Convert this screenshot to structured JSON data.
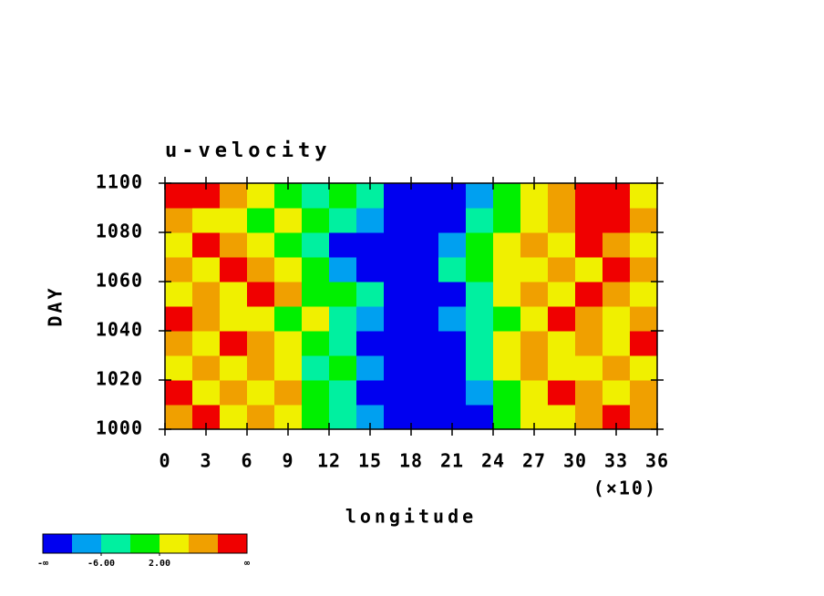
{
  "chart_data": {
    "type": "heatmap",
    "title": "u-velocity",
    "x_label": "longitude",
    "y_label": "DAY",
    "x_multiplier_label": "(×10)",
    "x": [
      1,
      3,
      5,
      7,
      9,
      11,
      13,
      15,
      17,
      19,
      21,
      23,
      25,
      27,
      29,
      31,
      33,
      35
    ],
    "y": [
      1005,
      1015,
      1025,
      1035,
      1045,
      1055,
      1065,
      1075,
      1085,
      1095
    ],
    "z": [
      [
        8,
        12,
        4,
        8,
        4,
        0,
        -4,
        -8,
        -12,
        -12,
        -12,
        -12,
        0,
        4,
        4,
        8,
        12,
        8
      ],
      [
        12,
        4,
        8,
        4,
        8,
        0,
        -4,
        -12,
        -12,
        -12,
        -12,
        -8,
        0,
        4,
        12,
        8,
        4,
        8
      ],
      [
        4,
        8,
        4,
        8,
        4,
        -4,
        0,
        -8,
        -12,
        -12,
        -12,
        -4,
        4,
        8,
        4,
        4,
        8,
        4
      ],
      [
        8,
        4,
        12,
        8,
        4,
        0,
        -4,
        -12,
        -12,
        -12,
        -12,
        -4,
        4,
        8,
        4,
        8,
        4,
        12
      ],
      [
        12,
        8,
        4,
        4,
        0,
        4,
        -4,
        -8,
        -12,
        -12,
        -8,
        -4,
        0,
        4,
        12,
        8,
        4,
        8
      ],
      [
        4,
        8,
        4,
        12,
        8,
        0,
        0,
        -4,
        -12,
        -12,
        -12,
        -4,
        4,
        8,
        4,
        12,
        8,
        4
      ],
      [
        8,
        4,
        12,
        8,
        4,
        0,
        -8,
        -12,
        -12,
        -12,
        -4,
        0,
        4,
        4,
        8,
        4,
        12,
        8
      ],
      [
        4,
        12,
        8,
        4,
        0,
        -4,
        -12,
        -12,
        -12,
        -12,
        -8,
        0,
        4,
        8,
        4,
        12,
        8,
        4
      ],
      [
        8,
        4,
        4,
        0,
        4,
        0,
        -4,
        -8,
        -12,
        -12,
        -12,
        -4,
        0,
        4,
        8,
        12,
        12,
        8
      ],
      [
        12,
        12,
        8,
        4,
        0,
        -4,
        0,
        -4,
        -12,
        -12,
        -12,
        -8,
        0,
        4,
        8,
        12,
        12,
        4
      ]
    ],
    "xlim": [
      0,
      36
    ],
    "xticks": [
      0,
      3,
      6,
      9,
      12,
      15,
      18,
      21,
      24,
      27,
      30,
      33,
      36
    ],
    "ylim": [
      1000,
      1100
    ],
    "yticks": [
      1000,
      1020,
      1040,
      1060,
      1080,
      1100
    ],
    "colorbar": {
      "levels": [
        -10,
        -6,
        -2,
        2,
        6,
        10
      ],
      "colors": [
        "#0000f0",
        "#00a0f0",
        "#00f0a0",
        "#00f000",
        "#f0f000",
        "#f0a000",
        "#f00000"
      ],
      "low_label": "-∞",
      "high_label": "∞",
      "ticks": [
        {
          "value": -6,
          "label": "-6.00"
        },
        {
          "value": 2,
          "label": "2.00"
        }
      ]
    }
  }
}
